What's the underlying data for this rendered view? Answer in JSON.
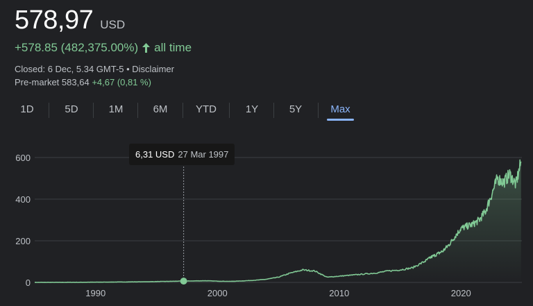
{
  "quote": {
    "price": "578,97",
    "currency": "USD",
    "change": "+578.85 (482,375.00%)",
    "change_period": "all time",
    "closed_text": "Closed: 6 Dec, 5.34 GMT-5 • Disclaimer",
    "premarket_label": "Pre-market",
    "premarket_price": "583,64",
    "premarket_change": "+4,67 (0,81 %)"
  },
  "tabs": [
    {
      "label": "1D"
    },
    {
      "label": "5D"
    },
    {
      "label": "1M"
    },
    {
      "label": "6M"
    },
    {
      "label": "YTD"
    },
    {
      "label": "1Y"
    },
    {
      "label": "5Y"
    },
    {
      "label": "Max"
    }
  ],
  "active_tab": "Max",
  "tooltip": {
    "price": "6,31 USD",
    "date": "27 Mar 1997"
  },
  "colors": {
    "line": "#81c995",
    "accent": "#8ab4f8",
    "background": "#202124"
  },
  "chart_data": {
    "type": "area",
    "xlabel": "",
    "ylabel": "",
    "x_ticks": [
      "1990",
      "2000",
      "2010",
      "2020"
    ],
    "y_ticks": [
      "0",
      "200",
      "400",
      "600"
    ],
    "xlim": [
      1985,
      2025
    ],
    "ylim": [
      0,
      600
    ],
    "grid": true,
    "highlight": {
      "x": 1997.23,
      "y": 6.31
    },
    "series": [
      {
        "x": [
          1985,
          1986,
          1987,
          1988,
          1989,
          1990,
          1991,
          1992,
          1993,
          1994,
          1995,
          1996,
          1997,
          1998,
          1999,
          2000,
          2001,
          2002,
          2003,
          2004,
          2005,
          2006,
          2007,
          2008,
          2009,
          2010,
          2011,
          2012,
          2013,
          2014,
          2015,
          2016,
          2017,
          2017.5,
          2018,
          2018.5,
          2019,
          2019.5,
          2020,
          2020.5,
          2021,
          2021.5,
          2022,
          2022.5,
          2023,
          2023.5,
          2024,
          2024.5,
          2024.93
        ],
        "y": [
          0.2,
          0.3,
          0.4,
          0.5,
          0.7,
          1,
          1.5,
          2,
          2.5,
          3,
          4,
          5,
          6.31,
          7,
          8,
          6,
          5,
          7,
          10,
          15,
          25,
          45,
          60,
          55,
          25,
          30,
          35,
          40,
          45,
          55,
          60,
          70,
          100,
          120,
          135,
          150,
          180,
          220,
          260,
          270,
          280,
          300,
          340,
          420,
          500,
          480,
          520,
          470,
          580
        ]
      }
    ]
  }
}
